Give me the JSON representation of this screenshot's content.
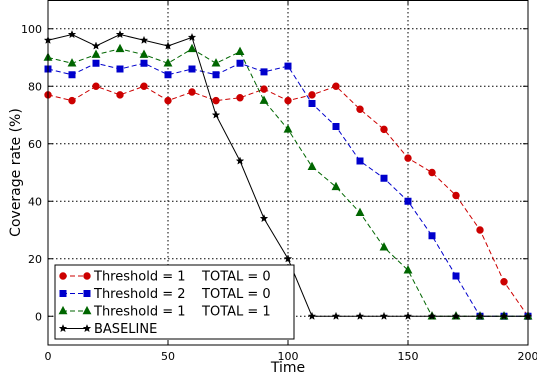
{
  "chart_data": {
    "type": "line",
    "title": "",
    "xlabel": "Time",
    "ylabel": "Coverage rate (%)",
    "xlim": [
      0,
      200
    ],
    "ylim": [
      -10,
      110
    ],
    "xticks": [
      0,
      50,
      100,
      150,
      200
    ],
    "yticks": [
      0,
      20,
      40,
      60,
      80,
      100
    ],
    "grid": true,
    "legend_position": "bottom-left",
    "series": [
      {
        "name": "Threshold = 1    TOTAL = 0",
        "color": "#cc0000",
        "marker": "circle",
        "linestyle": "dashed",
        "x": [
          0,
          10,
          20,
          30,
          40,
          50,
          60,
          70,
          80,
          90,
          100,
          110,
          120,
          130,
          140,
          150,
          160,
          170,
          180,
          190,
          200
        ],
        "y": [
          77,
          75,
          80,
          77,
          80,
          75,
          78,
          75,
          76,
          79,
          75,
          77,
          80,
          72,
          65,
          55,
          50,
          42,
          30,
          12,
          0
        ]
      },
      {
        "name": "Threshold = 2    TOTAL = 0",
        "color": "#0000cc",
        "marker": "square",
        "linestyle": "dashed",
        "x": [
          0,
          10,
          20,
          30,
          40,
          50,
          60,
          70,
          80,
          90,
          100,
          110,
          120,
          130,
          140,
          150,
          160,
          170,
          180,
          190,
          200
        ],
        "y": [
          86,
          84,
          88,
          86,
          88,
          84,
          86,
          84,
          88,
          85,
          87,
          74,
          66,
          54,
          48,
          40,
          28,
          14,
          0,
          0,
          0
        ]
      },
      {
        "name": "Threshold = 1    TOTAL = 1",
        "color": "#006600",
        "marker": "triangle",
        "linestyle": "dashed",
        "x": [
          0,
          10,
          20,
          30,
          40,
          50,
          60,
          70,
          80,
          90,
          100,
          110,
          120,
          130,
          140,
          150,
          160,
          170,
          180,
          190,
          200
        ],
        "y": [
          90,
          88,
          91,
          93,
          91,
          88,
          93,
          88,
          92,
          75,
          65,
          52,
          45,
          36,
          24,
          16,
          0,
          0,
          0,
          0,
          0
        ]
      },
      {
        "name": "BASELINE",
        "color": "#000000",
        "marker": "star",
        "linestyle": "solid",
        "x": [
          0,
          10,
          20,
          30,
          40,
          50,
          60,
          70,
          80,
          90,
          100,
          110,
          120,
          130,
          140,
          150,
          160,
          170,
          180,
          190,
          200
        ],
        "y": [
          96,
          98,
          94,
          98,
          96,
          94,
          97,
          70,
          54,
          34,
          20,
          0,
          0,
          0,
          0,
          0,
          0,
          0,
          0,
          0,
          0
        ]
      }
    ]
  }
}
